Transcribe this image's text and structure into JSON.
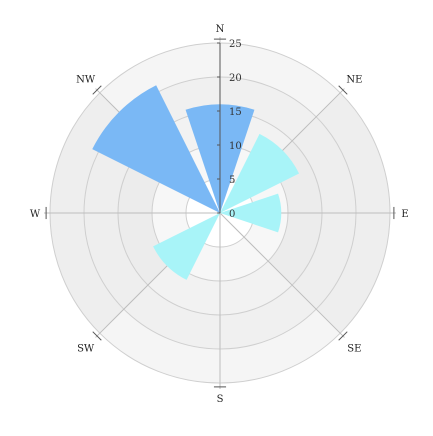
{
  "chart_data": {
    "type": "polar-bar",
    "title": "",
    "directions": [
      "N",
      "NE",
      "E",
      "SE",
      "S",
      "SW",
      "W",
      "NW"
    ],
    "radial_ticks": [
      "0",
      "5",
      "10",
      "15",
      "20",
      "25"
    ],
    "rlim": [
      0,
      25
    ],
    "grid": true,
    "bands": [
      {
        "r_from": 0,
        "r_to": 5,
        "fill": "#ffffff"
      },
      {
        "r_from": 5,
        "r_to": 10,
        "fill": "#f7f7f7"
      },
      {
        "r_from": 10,
        "r_to": 15,
        "fill": "#f2f2f2"
      },
      {
        "r_from": 15,
        "r_to": 20,
        "fill": "#f5f5f5"
      },
      {
        "r_from": 20,
        "r_to": 25,
        "fill": "#f5f5f5"
      }
    ],
    "sector_shading": "#e8e8e8",
    "series": [
      {
        "color": "#7ab8f5",
        "points": [
          {
            "direction": "N",
            "value": 16
          },
          {
            "direction": "NW",
            "value": 21
          }
        ]
      },
      {
        "color": "#a8f4f8",
        "points": [
          {
            "direction": "NE",
            "value": 13
          },
          {
            "direction": "E",
            "value": 9
          },
          {
            "direction": "SW",
            "value": 11
          }
        ]
      }
    ]
  }
}
